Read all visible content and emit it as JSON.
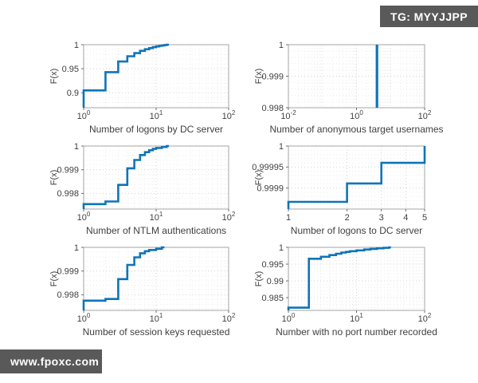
{
  "overlays": {
    "top_right_badge": "TG: MYYJJPP",
    "bottom_left_badge": "www.fpoxc.com",
    "badge_bg_color": "#595959",
    "badge_text_color": "#ffffff"
  },
  "figure": {
    "background_color": "#ffffff",
    "line_color": "#0e74b8",
    "axis_box_color": "#a6a6a6",
    "grid_major_color": "#d2d2d2",
    "grid_minor_color": "#ececec"
  },
  "chart_data": [
    {
      "type": "line",
      "subtype": "ecdf_step",
      "xlabel": "Number of logons by DC server",
      "ylabel": "F(x)",
      "xscale": "log",
      "xlim": [
        1,
        100
      ],
      "xticks": [
        1,
        10,
        100
      ],
      "xtick_style": "pow10",
      "ylim": [
        0.869,
        1
      ],
      "yticks": [
        0.9,
        0.95,
        1
      ],
      "ytick_labels": [
        "0.9",
        "0.95",
        "1"
      ],
      "steps": [
        [
          1,
          0.905
        ],
        [
          2,
          0.943
        ],
        [
          3,
          0.965
        ],
        [
          4,
          0.976
        ],
        [
          5,
          0.9825
        ],
        [
          6,
          0.9872
        ],
        [
          7,
          0.9905
        ],
        [
          8,
          0.9929
        ],
        [
          9,
          0.9948
        ],
        [
          10,
          0.9963
        ],
        [
          11,
          0.9975
        ],
        [
          12,
          0.9985
        ],
        [
          13,
          0.9993
        ],
        [
          14,
          1.0
        ]
      ],
      "x_end": 15
    },
    {
      "type": "line",
      "subtype": "ecdf_step",
      "xlabel": "Number of anonymous target usernames",
      "ylabel": "F(x)",
      "xscale": "log",
      "xlim": [
        0.01,
        100
      ],
      "xticks": [
        0.01,
        1,
        100
      ],
      "xtick_style": "pow10",
      "ylim": [
        0.998,
        1
      ],
      "yticks": [
        0.998,
        0.999,
        1
      ],
      "ytick_labels": [
        "0.998",
        "0.999",
        "1"
      ],
      "steps": [
        [
          4,
          1.0
        ]
      ],
      "x_end": 4,
      "line_width": 3.2
    },
    {
      "type": "line",
      "subtype": "ecdf_step",
      "xlabel": "Number of NTLM authentications",
      "ylabel": "F(x)",
      "xscale": "log",
      "xlim": [
        1,
        100
      ],
      "xticks": [
        1,
        10,
        100
      ],
      "xtick_style": "pow10",
      "ylim": [
        0.99734,
        1
      ],
      "yticks": [
        0.998,
        0.999,
        1
      ],
      "ytick_labels": [
        "0.998",
        "0.999",
        "1"
      ],
      "steps": [
        [
          1,
          0.99755
        ],
        [
          2,
          0.99766
        ],
        [
          3,
          0.99836
        ],
        [
          4,
          0.99906
        ],
        [
          5,
          0.99941
        ],
        [
          6,
          0.99962
        ],
        [
          7,
          0.99974
        ],
        [
          8,
          0.99982
        ],
        [
          9,
          0.99988
        ],
        [
          10,
          0.99992
        ],
        [
          12,
          0.99996
        ],
        [
          14,
          1.0
        ]
      ],
      "x_end": 15
    },
    {
      "type": "line",
      "subtype": "ecdf_step",
      "xlabel": "Number of logons to DC server",
      "ylabel": "F(x)",
      "xscale": "log",
      "xlim": [
        1,
        5
      ],
      "xticks": [
        1,
        2,
        3,
        4,
        5
      ],
      "xtick_style": "plain",
      "ylim": [
        0.99985,
        1
      ],
      "yticks": [
        0.9999,
        0.99995,
        1
      ],
      "ytick_labels": [
        "0.9999",
        "0.99995",
        "1"
      ],
      "steps": [
        [
          1,
          0.999867
        ],
        [
          2,
          0.999911
        ],
        [
          3,
          0.99996
        ],
        [
          5,
          1.0
        ]
      ],
      "x_end": 5
    },
    {
      "type": "line",
      "subtype": "ecdf_step",
      "xlabel": "Number of session keys requested",
      "ylabel": "F(x)",
      "xscale": "log",
      "xlim": [
        1,
        100
      ],
      "xticks": [
        1,
        10,
        100
      ],
      "xtick_style": "pow10",
      "ylim": [
        0.99734,
        1
      ],
      "yticks": [
        0.998,
        0.999,
        1
      ],
      "ytick_labels": [
        "0.998",
        "0.999",
        "1"
      ],
      "steps": [
        [
          1,
          0.99775
        ],
        [
          2,
          0.99782
        ],
        [
          3,
          0.99866
        ],
        [
          4,
          0.99926
        ],
        [
          5,
          0.99958
        ],
        [
          6,
          0.99975
        ],
        [
          7,
          0.99984
        ],
        [
          8,
          0.99989
        ],
        [
          10,
          0.99994
        ],
        [
          12,
          1.0
        ]
      ],
      "x_end": 13
    },
    {
      "type": "line",
      "subtype": "ecdf_step",
      "xlabel": "Number with no port number recorded",
      "ylabel": "F(x)",
      "xscale": "log",
      "xlim": [
        1,
        100
      ],
      "xticks": [
        1,
        10,
        100
      ],
      "xtick_style": "pow10",
      "ylim": [
        0.9812,
        1
      ],
      "yticks": [
        0.985,
        0.99,
        0.995,
        1
      ],
      "ytick_labels": [
        "0.985",
        "0.99",
        "0.995",
        "1"
      ],
      "steps": [
        [
          1,
          0.982
        ],
        [
          2,
          0.9966
        ],
        [
          3,
          0.9972
        ],
        [
          4,
          0.9977
        ],
        [
          5,
          0.9981
        ],
        [
          6,
          0.99845
        ],
        [
          7,
          0.99865
        ],
        [
          8,
          0.99885
        ],
        [
          10,
          0.9991
        ],
        [
          13,
          0.99935
        ],
        [
          16,
          0.99955
        ],
        [
          20,
          0.99972
        ],
        [
          25,
          0.99985
        ],
        [
          30,
          1.0
        ]
      ],
      "x_end": 32
    }
  ]
}
